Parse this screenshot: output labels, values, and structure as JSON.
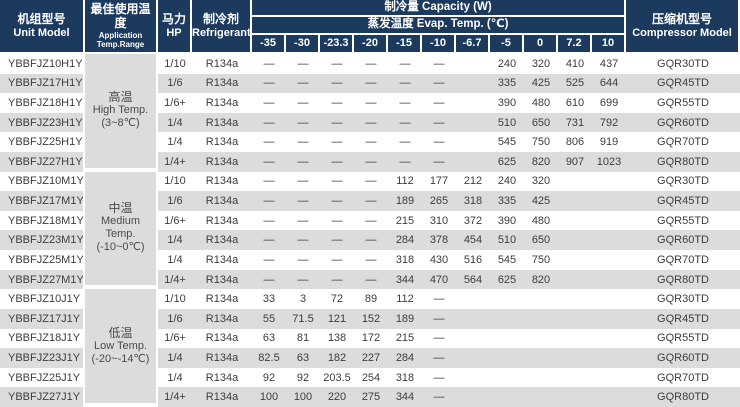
{
  "table": {
    "colors": {
      "header_bg": "#1c3a5e",
      "stripe": "#dcdcdc",
      "body_text": "#3d3d3d"
    },
    "header": {
      "unit_model_cn": "机组型号",
      "unit_model_en": "Unit Model",
      "app_temp_cn": "最佳使用温度",
      "app_temp_en": "Application Temp.Range",
      "hp_cn": "马力",
      "hp_en": "HP",
      "refrigerant_cn": "制冷剂",
      "refrigerant_en": "Refrigerant",
      "capacity_label": "制冷量  Capacity (W)",
      "evap_label": "蒸发温度  Evap. Temp. (℃)",
      "compressor_cn": "压缩机型号",
      "compressor_en": "Compressor Model",
      "evap_temps": [
        "-35",
        "-30",
        "-23.3",
        "-20",
        "-15",
        "-10",
        "-6.7",
        "-5",
        "0",
        "7.2",
        "10"
      ]
    },
    "groups": [
      {
        "label_lines": [
          "高温",
          "High Temp.",
          "(3~8℃)"
        ],
        "rows": [
          {
            "model": "YBBFJZ10H1Y",
            "hp": "1/10",
            "refrigerant": "R134a",
            "capacity": [
              "—",
              "—",
              "—",
              "—",
              "—",
              "—",
              "",
              "240",
              "320",
              "410",
              "437"
            ],
            "compressor": "GQR30TD"
          },
          {
            "model": "YBBFJZ17H1Y",
            "hp": "1/6",
            "refrigerant": "R134a",
            "capacity": [
              "—",
              "—",
              "—",
              "—",
              "—",
              "—",
              "",
              "335",
              "425",
              "525",
              "644"
            ],
            "compressor": "GQR45TD"
          },
          {
            "model": "YBBFJZ18H1Y",
            "hp": "1/6+",
            "refrigerant": "R134a",
            "capacity": [
              "—",
              "—",
              "—",
              "—",
              "—",
              "—",
              "",
              "390",
              "480",
              "610",
              "699"
            ],
            "compressor": "GQR55TD"
          },
          {
            "model": "YBBFJZ23H1Y",
            "hp": "1/4",
            "refrigerant": "R134a",
            "capacity": [
              "—",
              "—",
              "—",
              "—",
              "—",
              "—",
              "",
              "510",
              "650",
              "731",
              "792"
            ],
            "compressor": "GQR60TD"
          },
          {
            "model": "YBBFJZ25H1Y",
            "hp": "1/4",
            "refrigerant": "R134a",
            "capacity": [
              "—",
              "—",
              "—",
              "—",
              "—",
              "—",
              "",
              "545",
              "750",
              "806",
              "919"
            ],
            "compressor": "GQR70TD"
          },
          {
            "model": "YBBFJZ27H1Y",
            "hp": "1/4+",
            "refrigerant": "R134a",
            "capacity": [
              "—",
              "—",
              "—",
              "—",
              "—",
              "—",
              "",
              "625",
              "820",
              "907",
              "1023"
            ],
            "compressor": "GQR80TD"
          }
        ]
      },
      {
        "label_lines": [
          "中温",
          "Medium",
          "Temp.",
          "(-10~0℃)"
        ],
        "rows": [
          {
            "model": "YBBFJZ10M1Y",
            "hp": "1/10",
            "refrigerant": "R134a",
            "capacity": [
              "—",
              "—",
              "—",
              "—",
              "112",
              "177",
              "212",
              "240",
              "320",
              "",
              ""
            ],
            "compressor": "GQR30TD"
          },
          {
            "model": "YBBFJZ17M1Y",
            "hp": "1/6",
            "refrigerant": "R134a",
            "capacity": [
              "—",
              "—",
              "—",
              "—",
              "189",
              "265",
              "318",
              "335",
              "425",
              "",
              ""
            ],
            "compressor": "GQR45TD"
          },
          {
            "model": "YBBFJZ18M1Y",
            "hp": "1/6+",
            "refrigerant": "R134a",
            "capacity": [
              "—",
              "—",
              "—",
              "—",
              "215",
              "310",
              "372",
              "390",
              "480",
              "",
              ""
            ],
            "compressor": "GQR55TD"
          },
          {
            "model": "YBBFJZ23M1Y",
            "hp": "1/4",
            "refrigerant": "R134a",
            "capacity": [
              "—",
              "—",
              "—",
              "—",
              "284",
              "378",
              "454",
              "510",
              "650",
              "",
              ""
            ],
            "compressor": "GQR60TD"
          },
          {
            "model": "YBBFJZ25M1Y",
            "hp": "1/4",
            "refrigerant": "R134a",
            "capacity": [
              "—",
              "—",
              "—",
              "—",
              "318",
              "430",
              "516",
              "545",
              "750",
              "",
              ""
            ],
            "compressor": "GQR70TD"
          },
          {
            "model": "YBBFJZ27M1Y",
            "hp": "1/4+",
            "refrigerant": "R134a",
            "capacity": [
              "—",
              "—",
              "—",
              "—",
              "344",
              "470",
              "564",
              "625",
              "820",
              "",
              ""
            ],
            "compressor": "GQR80TD"
          }
        ]
      },
      {
        "label_lines": [
          "低温",
          "Low Temp.",
          "(-20~-14℃)"
        ],
        "rows": [
          {
            "model": "YBBFJZ10J1Y",
            "hp": "1/10",
            "refrigerant": "R134a",
            "capacity": [
              "33",
              "3",
              "72",
              "89",
              "112",
              "—",
              "",
              "",
              "",
              "",
              ""
            ],
            "compressor": "GQR30TD"
          },
          {
            "model": "YBBFJZ17J1Y",
            "hp": "1/6",
            "refrigerant": "R134a",
            "capacity": [
              "55",
              "71.5",
              "121",
              "152",
              "189",
              "—",
              "",
              "",
              "",
              "",
              ""
            ],
            "compressor": "GQR45TD"
          },
          {
            "model": "YBBFJZ18J1Y",
            "hp": "1/6+",
            "refrigerant": "R134a",
            "capacity": [
              "63",
              "81",
              "138",
              "172",
              "215",
              "—",
              "",
              "",
              "",
              "",
              ""
            ],
            "compressor": "GQR55TD"
          },
          {
            "model": "YBBFJZ23J1Y",
            "hp": "1/4",
            "refrigerant": "R134a",
            "capacity": [
              "82.5",
              "63",
              "182",
              "227",
              "284",
              "—",
              "",
              "",
              "",
              "",
              ""
            ],
            "compressor": "GQR60TD"
          },
          {
            "model": "YBBFJZ25J1Y",
            "hp": "1/4",
            "refrigerant": "R134a",
            "capacity": [
              "92",
              "92",
              "203.5",
              "254",
              "318",
              "—",
              "",
              "",
              "",
              "",
              ""
            ],
            "compressor": "GQR70TD"
          },
          {
            "model": "YBBFJZ27J1Y",
            "hp": "1/4+",
            "refrigerant": "R134a",
            "capacity": [
              "100",
              "100",
              "220",
              "275",
              "344",
              "—",
              "",
              "",
              "",
              "",
              ""
            ],
            "compressor": "GQR80TD"
          }
        ]
      }
    ]
  }
}
